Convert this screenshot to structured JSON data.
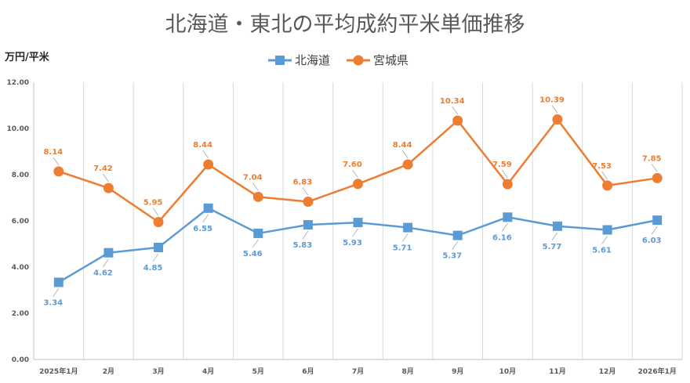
{
  "chart_data": {
    "type": "line",
    "title": "北海道・東北の平均成約平米単価推移",
    "ylabel": "万円/平米",
    "xlabel": "",
    "ylim": [
      0,
      12
    ],
    "yticks": [
      "0.00",
      "2.00",
      "4.00",
      "6.00",
      "8.00",
      "10.00",
      "12.00"
    ],
    "ytick_values": [
      0,
      2,
      4,
      6,
      8,
      10,
      12
    ],
    "grid": "vertical",
    "legend_position": "top-center",
    "categories": [
      "2025年1月",
      "2月",
      "3月",
      "4月",
      "5月",
      "6月",
      "7月",
      "8月",
      "9月",
      "10月",
      "11月",
      "12月",
      "2026年1月"
    ],
    "series": [
      {
        "name": "北海道",
        "color": "#5B9BD5",
        "marker": "square",
        "label_position": "below",
        "values": [
          3.34,
          4.62,
          4.85,
          6.55,
          5.46,
          5.83,
          5.93,
          5.71,
          5.37,
          6.16,
          5.77,
          5.61,
          6.03
        ],
        "labels": [
          "3.34",
          "4.62",
          "4.85",
          "6.55",
          "5.46",
          "5.83",
          "5.93",
          "5.71",
          "5.37",
          "6.16",
          "5.77",
          "5.61",
          "6.03"
        ]
      },
      {
        "name": "宮城県",
        "color": "#ED7D31",
        "marker": "circle",
        "label_position": "above",
        "values": [
          8.14,
          7.42,
          5.95,
          8.44,
          7.04,
          6.83,
          7.6,
          8.44,
          10.34,
          7.59,
          10.39,
          7.53,
          7.85
        ],
        "labels": [
          "8.14",
          "7.42",
          "5.95",
          "8.44",
          "7.04",
          "6.83",
          "7.60",
          "8.44",
          "10.34",
          "7.59",
          "10.39",
          "7.53",
          "7.85"
        ]
      }
    ]
  }
}
